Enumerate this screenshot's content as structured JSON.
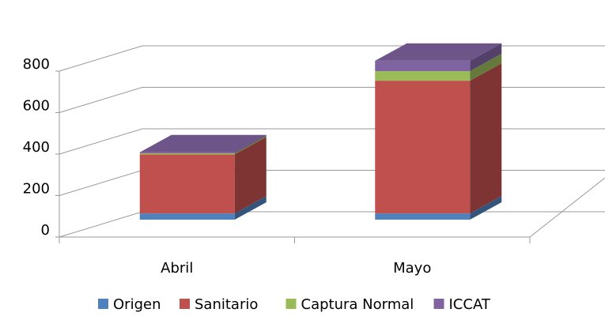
{
  "chart_data": {
    "type": "bar3d_stacked",
    "categories": [
      "Abril",
      "Mayo"
    ],
    "series": [
      {
        "name": "Origen",
        "color": "#4f81bd",
        "values": [
          30,
          30
        ]
      },
      {
        "name": "Sanitario",
        "color": "#c0504d",
        "values": [
          285,
          640
        ]
      },
      {
        "name": "Captura Normal",
        "color": "#9bbb59",
        "values": [
          5,
          46
        ]
      },
      {
        "name": "ICCAT",
        "color": "#8064a2",
        "values": [
          5,
          50
        ]
      }
    ],
    "ylim": [
      0,
      800
    ],
    "yticks": [
      0,
      200,
      400,
      600,
      800
    ],
    "grid": true,
    "legend": "bottom"
  }
}
